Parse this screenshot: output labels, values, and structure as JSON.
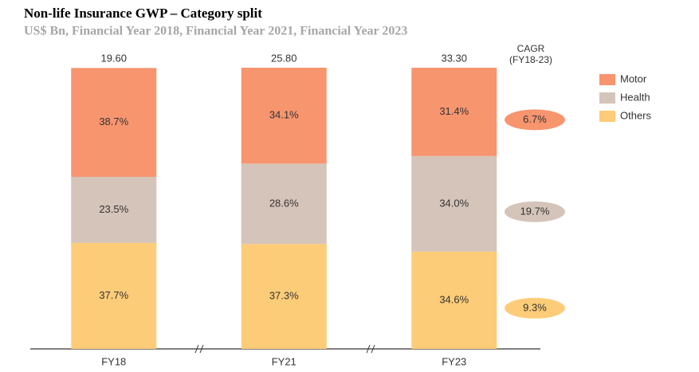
{
  "chart_data": {
    "type": "stacked-bar-100",
    "title": "Non-life Insurance GWP – Category split",
    "subtitle": "US$ Bn, Financial Year 2018, Financial Year 2021, Financial Year 2023",
    "categories": [
      "FY18",
      "FY21",
      "FY23"
    ],
    "totals": {
      "values": [
        19.6,
        25.8,
        33.3
      ],
      "value_labels": [
        "19.60",
        "25.80",
        "33.30"
      ]
    },
    "ylim": [
      0,
      100
    ],
    "series": [
      {
        "name": "Motor",
        "color": "#f7956f",
        "values": [
          38.7,
          34.1,
          31.4
        ],
        "value_labels": [
          "38.7%",
          "34.1%",
          "31.4%"
        ],
        "cagr": 6.7,
        "cagr_label": "6.7%"
      },
      {
        "name": "Health",
        "color": "#d5c4b9",
        "values": [
          23.5,
          28.6,
          34.0
        ],
        "value_labels": [
          "23.5%",
          "28.6%",
          "34.0%"
        ],
        "cagr": 19.7,
        "cagr_label": "19.7%"
      },
      {
        "name": "Others",
        "color": "#fdcc78",
        "values": [
          37.7,
          37.3,
          34.6
        ],
        "value_labels": [
          "37.7%",
          "37.3%",
          "34.6%"
        ],
        "cagr": 9.3,
        "cagr_label": "9.3%"
      }
    ],
    "cagr_title": "CAGR",
    "cagr_subtitle": "(FY18-23)"
  }
}
